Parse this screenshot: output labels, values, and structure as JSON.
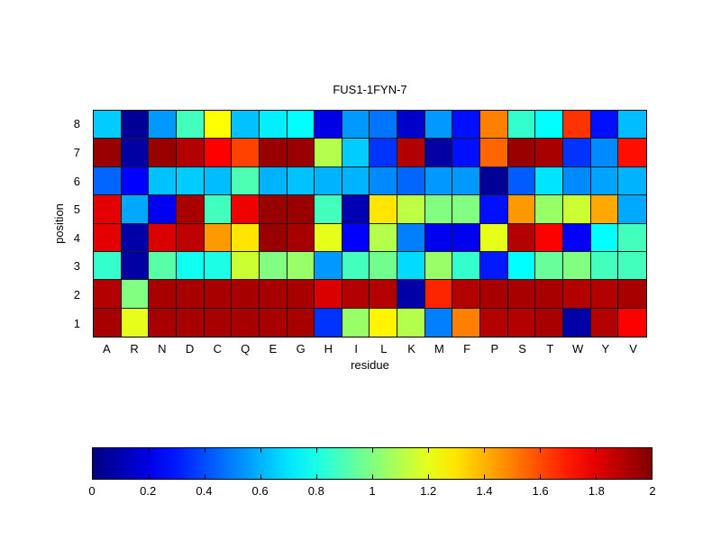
{
  "figure": {
    "title": "FUS1-1FYN-7",
    "xlabel": "residue",
    "ylabel": "position"
  },
  "chart_data": {
    "type": "heatmap",
    "title": "FUS1-1FYN-7",
    "xlabel": "residue",
    "ylabel": "position",
    "x_categories": [
      "A",
      "R",
      "N",
      "D",
      "C",
      "Q",
      "E",
      "G",
      "H",
      "I",
      "L",
      "K",
      "M",
      "F",
      "P",
      "S",
      "T",
      "W",
      "Y",
      "V"
    ],
    "y_categories_top_to_bottom": [
      "8",
      "7",
      "6",
      "5",
      "4",
      "3",
      "2",
      "1"
    ],
    "colormap": "jet",
    "value_range": [
      0,
      2
    ],
    "grid": true,
    "gridline_color": "#1a1a1a",
    "colorbar": {
      "orientation": "horizontal",
      "min": 0,
      "max": 2,
      "tick_labels": [
        "0",
        "0.2",
        "0.4",
        "0.6",
        "0.8",
        "1",
        "1.2",
        "1.4",
        "1.6",
        "1.8",
        "2"
      ]
    },
    "values_rows_top_to_bottom": [
      [
        0.65,
        0.05,
        0.55,
        0.88,
        1.25,
        0.63,
        0.72,
        0.75,
        0.2,
        0.55,
        0.48,
        0.15,
        0.55,
        0.28,
        1.5,
        0.85,
        0.75,
        1.65,
        0.28,
        0.62
      ],
      [
        1.95,
        0.07,
        1.95,
        1.9,
        1.75,
        1.62,
        1.95,
        1.95,
        1.1,
        0.65,
        0.35,
        1.9,
        0.07,
        0.28,
        1.55,
        1.95,
        1.92,
        0.35,
        0.52,
        1.72
      ],
      [
        0.45,
        0.25,
        0.63,
        0.65,
        0.62,
        0.9,
        0.6,
        0.63,
        0.6,
        0.6,
        0.52,
        0.45,
        0.55,
        0.55,
        0.05,
        0.43,
        0.7,
        0.52,
        0.57,
        0.6
      ],
      [
        1.8,
        0.58,
        0.22,
        1.92,
        0.88,
        1.78,
        1.95,
        1.95,
        0.88,
        0.1,
        1.3,
        1.12,
        1.0,
        1.0,
        0.28,
        1.45,
        1.05,
        1.15,
        1.42,
        0.58
      ],
      [
        1.8,
        0.08,
        1.82,
        1.88,
        1.45,
        1.3,
        1.95,
        1.92,
        1.2,
        0.25,
        1.1,
        0.5,
        0.22,
        0.22,
        1.2,
        1.9,
        1.75,
        0.24,
        0.75,
        0.88
      ],
      [
        0.85,
        0.07,
        0.92,
        0.78,
        0.8,
        1.15,
        1.0,
        1.05,
        0.55,
        0.88,
        0.97,
        0.68,
        1.05,
        0.85,
        0.3,
        0.75,
        0.95,
        1.0,
        0.88,
        0.88
      ],
      [
        1.9,
        1.0,
        1.92,
        1.92,
        1.92,
        1.92,
        1.92,
        1.92,
        1.82,
        1.9,
        1.9,
        0.08,
        1.68,
        1.9,
        1.92,
        1.92,
        1.92,
        1.9,
        1.9,
        1.92
      ],
      [
        1.92,
        1.2,
        1.92,
        1.92,
        1.92,
        1.92,
        1.92,
        1.92,
        0.35,
        1.05,
        1.27,
        1.1,
        0.5,
        1.5,
        1.9,
        1.9,
        1.92,
        0.08,
        1.9,
        1.75
      ]
    ]
  }
}
